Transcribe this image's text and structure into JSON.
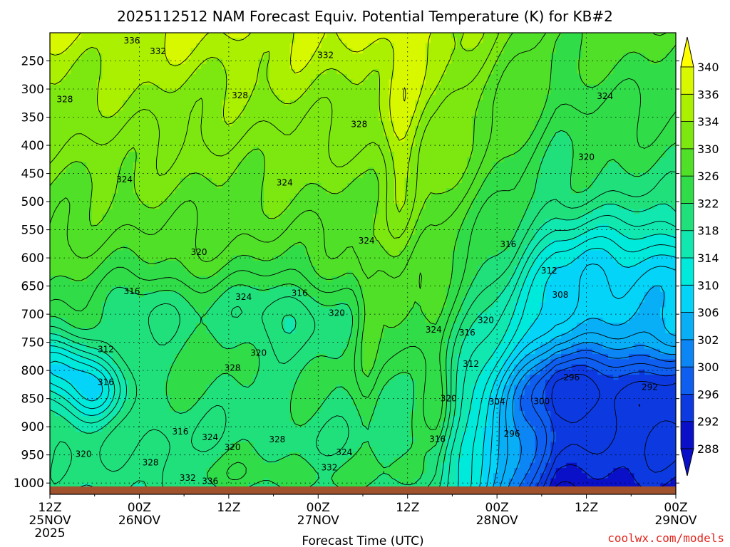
{
  "chart_data": {
    "type": "heatmap",
    "title": "2025112512 NAM Forecast Equiv. Potential Temperature (K) for KB#2",
    "xlabel": "Forecast Time (UTC)",
    "ylabel": "",
    "credit": "coolwx.com/models",
    "x_ticks": [
      {
        "hour": 0,
        "line1": "12Z",
        "line2": "25NOV",
        "line3": "2025"
      },
      {
        "hour": 12,
        "line1": "00Z",
        "line2": "26NOV",
        "line3": ""
      },
      {
        "hour": 24,
        "line1": "12Z",
        "line2": "",
        "line3": ""
      },
      {
        "hour": 36,
        "line1": "00Z",
        "line2": "27NOV",
        "line3": ""
      },
      {
        "hour": 48,
        "line1": "12Z",
        "line2": "",
        "line3": ""
      },
      {
        "hour": 60,
        "line1": "00Z",
        "line2": "28NOV",
        "line3": ""
      },
      {
        "hour": 72,
        "line1": "12Z",
        "line2": "",
        "line3": ""
      },
      {
        "hour": 84,
        "line1": "00Z",
        "line2": "29NOV",
        "line3": ""
      }
    ],
    "xlim": [
      0,
      84
    ],
    "y_ticks": [
      250,
      300,
      350,
      400,
      450,
      500,
      550,
      600,
      650,
      700,
      750,
      800,
      850,
      900,
      950,
      1000
    ],
    "y_tick_labels": [
      "250",
      "300",
      "350",
      "400",
      "450",
      "500",
      "550",
      "600",
      "650",
      "700",
      "750",
      "800",
      "850",
      "900",
      "950",
      "1000"
    ],
    "ylim": [
      200,
      1020
    ],
    "colorbar": {
      "levels": [
        288,
        292,
        296,
        300,
        302,
        306,
        310,
        314,
        318,
        322,
        326,
        330,
        334,
        336,
        340
      ],
      "level_labels": [
        "288",
        "292",
        "296",
        "300",
        "302",
        "306",
        "310",
        "314",
        "318",
        "322",
        "326",
        "330",
        "334",
        "336",
        "340"
      ],
      "colors": [
        "#0a10c8",
        "#0c3ae0",
        "#0e5ef0",
        "#0c86f4",
        "#08aef6",
        "#04d4f8",
        "#00eadc",
        "#10e8b0",
        "#20e07c",
        "#30dc48",
        "#50e028",
        "#7ce810",
        "#aaf000",
        "#d8f800",
        "#ffff00"
      ]
    },
    "contour_labels": [
      {
        "value": "336",
        "hour": 11,
        "p": 213
      },
      {
        "value": "332",
        "hour": 14.5,
        "p": 232
      },
      {
        "value": "332",
        "hour": 37,
        "p": 239
      },
      {
        "value": "328",
        "hour": 2,
        "p": 318
      },
      {
        "value": "328",
        "hour": 25.5,
        "p": 311
      },
      {
        "value": "328",
        "hour": 41.5,
        "p": 362
      },
      {
        "value": "324",
        "hour": 74.5,
        "p": 312
      },
      {
        "value": "320",
        "hour": 72,
        "p": 420
      },
      {
        "value": "324",
        "hour": 10,
        "p": 460
      },
      {
        "value": "324",
        "hour": 31.5,
        "p": 466
      },
      {
        "value": "324",
        "hour": 42.5,
        "p": 569
      },
      {
        "value": "320",
        "hour": 20,
        "p": 589
      },
      {
        "value": "316",
        "hour": 61.5,
        "p": 575
      },
      {
        "value": "312",
        "hour": 67,
        "p": 622
      },
      {
        "value": "308",
        "hour": 68.5,
        "p": 665
      },
      {
        "value": "316",
        "hour": 11,
        "p": 659
      },
      {
        "value": "324",
        "hour": 26,
        "p": 669
      },
      {
        "value": "316",
        "hour": 33.5,
        "p": 662
      },
      {
        "value": "320",
        "hour": 38.5,
        "p": 697
      },
      {
        "value": "324",
        "hour": 51.5,
        "p": 727
      },
      {
        "value": "316",
        "hour": 56,
        "p": 732
      },
      {
        "value": "320",
        "hour": 58.5,
        "p": 710
      },
      {
        "value": "312",
        "hour": 7.5,
        "p": 762
      },
      {
        "value": "312",
        "hour": 56.5,
        "p": 788
      },
      {
        "value": "328",
        "hour": 24.5,
        "p": 795
      },
      {
        "value": "320",
        "hour": 28,
        "p": 768
      },
      {
        "value": "316",
        "hour": 7.5,
        "p": 820
      },
      {
        "value": "296",
        "hour": 70,
        "p": 812
      },
      {
        "value": "292",
        "hour": 80.5,
        "p": 829
      },
      {
        "value": "300",
        "hour": 66,
        "p": 854
      },
      {
        "value": "304",
        "hour": 60,
        "p": 855
      },
      {
        "value": "320",
        "hour": 53.5,
        "p": 849
      },
      {
        "value": "296",
        "hour": 62,
        "p": 912
      },
      {
        "value": "316",
        "hour": 17.5,
        "p": 908
      },
      {
        "value": "324",
        "hour": 21.5,
        "p": 918
      },
      {
        "value": "328",
        "hour": 30.5,
        "p": 922
      },
      {
        "value": "316",
        "hour": 52,
        "p": 921
      },
      {
        "value": "320",
        "hour": 4.5,
        "p": 948
      },
      {
        "value": "324",
        "hour": 39.5,
        "p": 945
      },
      {
        "value": "328",
        "hour": 13.5,
        "p": 963
      },
      {
        "value": "332",
        "hour": 37.5,
        "p": 972
      },
      {
        "value": "332",
        "hour": 18.5,
        "p": 990
      },
      {
        "value": "336",
        "hour": 21.5,
        "p": 996
      },
      {
        "value": "320",
        "hour": 24.5,
        "p": 936
      }
    ],
    "colors": {
      "ground": "#a0522d",
      "credit": "#e0241c",
      "contour": "#000000",
      "gridline": "#000000"
    }
  }
}
